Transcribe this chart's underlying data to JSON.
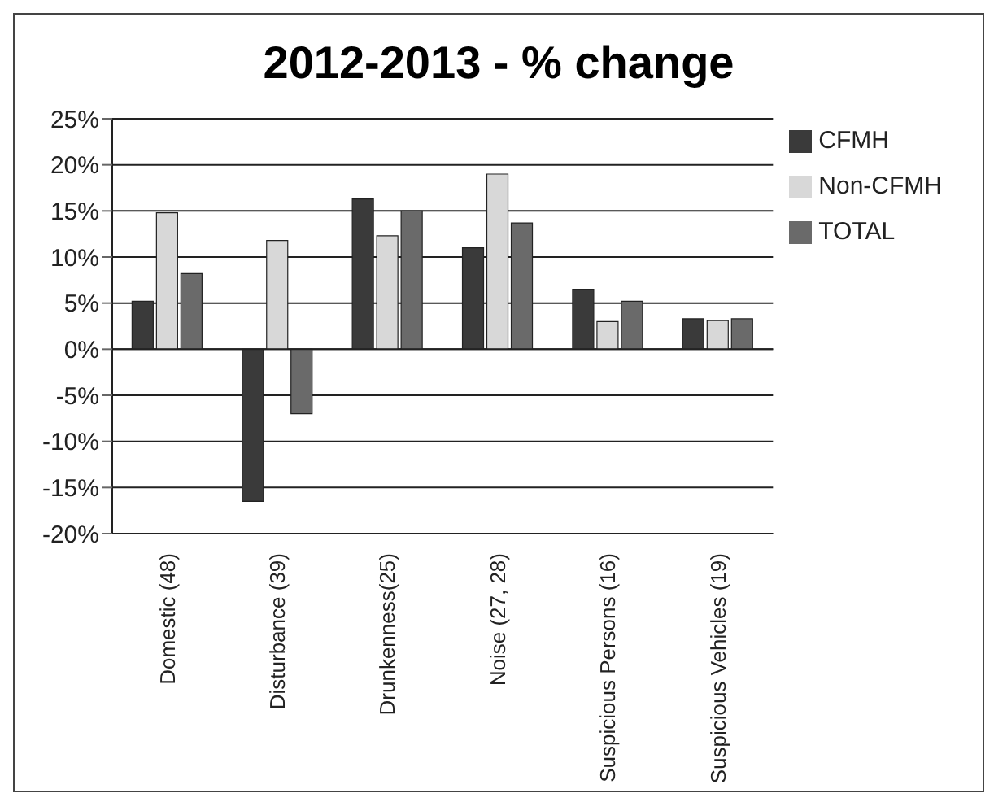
{
  "chart_data": {
    "type": "bar",
    "title": "2012-2013 - % change",
    "categories": [
      "Domestic (48)",
      "Disturbance (39)",
      "Drunkenness(25)",
      "Noise (27, 28)",
      "Suspicious Persons (16)",
      "Suspicious Vehicles (19)"
    ],
    "series": [
      {
        "name": "CFMH",
        "color": "#3a3a3a",
        "values": [
          5.2,
          -16.5,
          16.3,
          11,
          6.5,
          3.3
        ]
      },
      {
        "name": "Non-CFMH",
        "color": "#d8d8d8",
        "values": [
          14.8,
          11.8,
          12.3,
          19,
          3,
          3.1
        ]
      },
      {
        "name": "TOTAL",
        "color": "#6a6a6a",
        "values": [
          8.2,
          -7,
          15,
          13.7,
          5.2,
          3.3
        ]
      }
    ],
    "ylim": [
      -20,
      25
    ],
    "yticks": [
      {
        "value": -20,
        "label": "-20%"
      },
      {
        "value": -15,
        "label": "-15%"
      },
      {
        "value": -10,
        "label": "-10%"
      },
      {
        "value": -5,
        "label": "-5%"
      },
      {
        "value": 0,
        "label": "0%"
      },
      {
        "value": 5,
        "label": "5%"
      },
      {
        "value": 10,
        "label": "10%"
      },
      {
        "value": 15,
        "label": "15%"
      },
      {
        "value": 20,
        "label": "20%"
      },
      {
        "value": 25,
        "label": "25%"
      }
    ],
    "grid": "y",
    "legend": "right"
  }
}
